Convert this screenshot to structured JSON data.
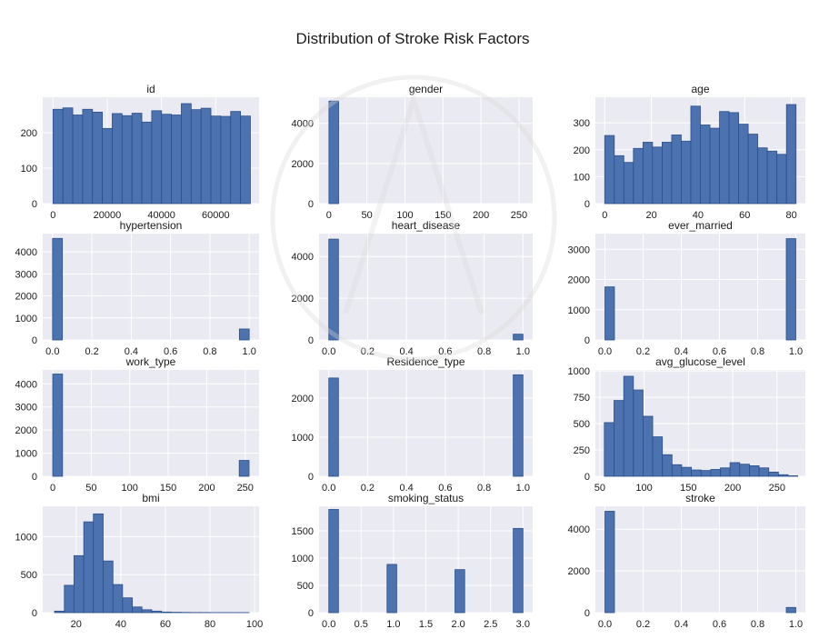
{
  "figure_title": "Distribution of Stroke Risk Factors",
  "colors": {
    "bar": "#4c72b0",
    "bar_edge": "#2b4f8a",
    "panel_bg": "#eaeaf2",
    "grid": "#ffffff"
  },
  "chart_data": [
    {
      "type": "bar",
      "title": "id",
      "xlim": [
        -3800,
        76000
      ],
      "ylim": [
        0,
        300
      ],
      "xticks": [
        0,
        20000,
        40000,
        60000
      ],
      "yticks": [
        0,
        100,
        200
      ],
      "bins": [
        [
          0,
          3640
        ],
        [
          3640,
          7280
        ],
        [
          7280,
          10920
        ],
        [
          10920,
          14560
        ],
        [
          14560,
          18200
        ],
        [
          18200,
          21840
        ],
        [
          21840,
          25480
        ],
        [
          25480,
          29120
        ],
        [
          29120,
          32760
        ],
        [
          32760,
          36400
        ],
        [
          36400,
          40040
        ],
        [
          40040,
          43680
        ],
        [
          43680,
          47320
        ],
        [
          47320,
          50960
        ],
        [
          50960,
          54600
        ],
        [
          54600,
          58240
        ],
        [
          58240,
          61880
        ],
        [
          61880,
          65520
        ],
        [
          65520,
          69160
        ],
        [
          69160,
          72800
        ]
      ],
      "values": [
        266,
        270,
        250,
        266,
        258,
        212,
        254,
        248,
        255,
        230,
        262,
        252,
        250,
        282,
        265,
        269,
        247,
        246,
        260,
        247
      ]
    },
    {
      "type": "bar",
      "title": "gender",
      "xlim": [
        -13,
        268
      ],
      "ylim": [
        0,
        5300
      ],
      "xticks": [
        0,
        50,
        100,
        150,
        200,
        250
      ],
      "yticks": [
        0,
        2000,
        4000
      ],
      "bins": [
        [
          0,
          12.75
        ]
      ],
      "values": [
        5110
      ]
    },
    {
      "type": "bar",
      "title": "age",
      "xlim": [
        -4,
        86
      ],
      "ylim": [
        0,
        395
      ],
      "xticks": [
        0,
        20,
        40,
        60,
        80
      ],
      "yticks": [
        0,
        100,
        200,
        300
      ],
      "bins": [
        [
          0,
          4.1
        ],
        [
          4.1,
          8.2
        ],
        [
          8.2,
          12.3
        ],
        [
          12.3,
          16.4
        ],
        [
          16.4,
          20.5
        ],
        [
          20.5,
          24.6
        ],
        [
          24.6,
          28.7
        ],
        [
          28.7,
          32.8
        ],
        [
          32.8,
          36.9
        ],
        [
          36.9,
          41
        ],
        [
          41,
          45.1
        ],
        [
          45.1,
          49.2
        ],
        [
          49.2,
          53.3
        ],
        [
          53.3,
          57.4
        ],
        [
          57.4,
          61.5
        ],
        [
          61.5,
          65.6
        ],
        [
          65.6,
          69.7
        ],
        [
          69.7,
          73.8
        ],
        [
          73.8,
          77.9
        ],
        [
          77.9,
          82
        ]
      ],
      "values": [
        253,
        178,
        153,
        205,
        228,
        210,
        228,
        255,
        232,
        362,
        292,
        280,
        342,
        338,
        295,
        258,
        207,
        195,
        183,
        368
      ]
    },
    {
      "type": "bar",
      "title": "hypertension",
      "xlim": [
        -0.05,
        1.05
      ],
      "ylim": [
        0,
        4830
      ],
      "xticks": [
        0,
        0.2,
        0.4,
        0.6,
        0.8,
        1
      ],
      "xtick_labels": [
        "0.0",
        "0.2",
        "0.4",
        "0.6",
        "0.8",
        "1.0"
      ],
      "yticks": [
        0,
        1000,
        2000,
        3000,
        4000
      ],
      "bins": [
        [
          0,
          0.05
        ],
        [
          0.95,
          1
        ]
      ],
      "values": [
        4612,
        498
      ]
    },
    {
      "type": "bar",
      "title": "heart_disease",
      "xlim": [
        -0.05,
        1.05
      ],
      "ylim": [
        0,
        5100
      ],
      "xticks": [
        0,
        0.2,
        0.4,
        0.6,
        0.8,
        1
      ],
      "xtick_labels": [
        "0.0",
        "0.2",
        "0.4",
        "0.6",
        "0.8",
        "1.0"
      ],
      "yticks": [
        0,
        2000,
        4000
      ],
      "bins": [
        [
          0,
          0.05
        ],
        [
          0.95,
          1
        ]
      ],
      "values": [
        4834,
        276
      ]
    },
    {
      "type": "bar",
      "title": "ever_married",
      "xlim": [
        -0.05,
        1.05
      ],
      "ylim": [
        0,
        3520
      ],
      "xticks": [
        0,
        0.2,
        0.4,
        0.6,
        0.8,
        1
      ],
      "xtick_labels": [
        "0.0",
        "0.2",
        "0.4",
        "0.6",
        "0.8",
        "1.0"
      ],
      "yticks": [
        0,
        1000,
        2000,
        3000
      ],
      "bins": [
        [
          0,
          0.05
        ],
        [
          0.95,
          1
        ]
      ],
      "values": [
        1757,
        3353
      ]
    },
    {
      "type": "bar",
      "title": "work_type",
      "xlim": [
        -13,
        268
      ],
      "ylim": [
        0,
        4600
      ],
      "xticks": [
        0,
        50,
        100,
        150,
        200,
        250
      ],
      "yticks": [
        0,
        1000,
        2000,
        3000,
        4000
      ],
      "bins": [
        [
          0,
          12.75
        ],
        [
          242.25,
          255
        ]
      ],
      "values": [
        4423,
        687
      ]
    },
    {
      "type": "bar",
      "title": "Residence_type",
      "xlim": [
        -0.05,
        1.05
      ],
      "ylim": [
        0,
        2720
      ],
      "xticks": [
        0,
        0.2,
        0.4,
        0.6,
        0.8,
        1
      ],
      "xtick_labels": [
        "0.0",
        "0.2",
        "0.4",
        "0.6",
        "0.8",
        "1.0"
      ],
      "yticks": [
        0,
        1000,
        2000
      ],
      "bins": [
        [
          0,
          0.05
        ],
        [
          0.95,
          1
        ]
      ],
      "values": [
        2514,
        2596
      ]
    },
    {
      "type": "bar",
      "title": "avg_glucose_level",
      "xlim": [
        45,
        282
      ],
      "ylim": [
        0,
        1010
      ],
      "xticks": [
        50,
        100,
        150,
        200,
        250
      ],
      "yticks": [
        0,
        250,
        500,
        750,
        1000
      ],
      "bins": [
        [
          55.1,
          66.0
        ],
        [
          66.0,
          77.0
        ],
        [
          77.0,
          87.9
        ],
        [
          87.9,
          98.8
        ],
        [
          98.8,
          109.7
        ],
        [
          109.7,
          120.6
        ],
        [
          120.6,
          131.5
        ],
        [
          131.5,
          142.4
        ],
        [
          142.4,
          153.4
        ],
        [
          153.4,
          164.3
        ],
        [
          164.3,
          175.2
        ],
        [
          175.2,
          186.1
        ],
        [
          186.1,
          197.0
        ],
        [
          197.0,
          207.9
        ],
        [
          207.9,
          218.9
        ],
        [
          218.9,
          229.8
        ],
        [
          229.8,
          240.7
        ],
        [
          240.7,
          251.6
        ],
        [
          251.6,
          262.5
        ],
        [
          262.5,
          273.4
        ]
      ],
      "values": [
        510,
        720,
        950,
        820,
        570,
        375,
        205,
        110,
        85,
        60,
        55,
        65,
        80,
        130,
        115,
        100,
        80,
        40,
        15,
        5
      ]
    },
    {
      "type": "bar",
      "title": "bmi",
      "xlim": [
        5,
        102
      ],
      "ylim": [
        0,
        1400
      ],
      "xticks": [
        20,
        40,
        60,
        80,
        100
      ],
      "yticks": [
        0,
        500,
        1000
      ],
      "bins": [
        [
          10.3,
          14.7
        ],
        [
          14.7,
          19.0
        ],
        [
          19.0,
          23.4
        ],
        [
          23.4,
          27.7
        ],
        [
          27.7,
          32.1
        ],
        [
          32.1,
          36.5
        ],
        [
          36.5,
          40.8
        ],
        [
          40.8,
          45.2
        ],
        [
          45.2,
          49.5
        ],
        [
          49.5,
          53.9
        ],
        [
          53.9,
          58.3
        ],
        [
          58.3,
          62.6
        ],
        [
          62.6,
          67.0
        ],
        [
          67.0,
          71.3
        ],
        [
          71.3,
          75.7
        ],
        [
          75.7,
          80.0
        ],
        [
          80.0,
          84.4
        ],
        [
          84.4,
          88.8
        ],
        [
          88.8,
          93.1
        ],
        [
          93.1,
          97.5
        ]
      ],
      "values": [
        20,
        360,
        750,
        1195,
        1300,
        680,
        370,
        195,
        75,
        38,
        20,
        8,
        5,
        3,
        2,
        2,
        1,
        1,
        1,
        1
      ]
    },
    {
      "type": "bar",
      "title": "smoking_status",
      "xlim": [
        -0.15,
        3.15
      ],
      "ylim": [
        0,
        1950
      ],
      "xticks": [
        0,
        0.5,
        1,
        1.5,
        2,
        2.5,
        3
      ],
      "xtick_labels": [
        "0.0",
        "0.5",
        "1.0",
        "1.5",
        "2.0",
        "2.5",
        "3.0"
      ],
      "yticks": [
        0,
        500,
        1000,
        1500
      ],
      "bins": [
        [
          0,
          0.15
        ],
        [
          0.9,
          1.05
        ],
        [
          1.95,
          2.1
        ],
        [
          2.85,
          3
        ]
      ],
      "values": [
        1892,
        885,
        789,
        1544
      ]
    },
    {
      "type": "bar",
      "title": "stroke",
      "xlim": [
        -0.05,
        1.05
      ],
      "ylim": [
        0,
        5100
      ],
      "xticks": [
        0,
        0.2,
        0.4,
        0.6,
        0.8,
        1
      ],
      "xtick_labels": [
        "0.0",
        "0.2",
        "0.4",
        "0.6",
        "0.8",
        "1.0"
      ],
      "yticks": [
        0,
        2000,
        4000
      ],
      "bins": [
        [
          0,
          0.05
        ],
        [
          0.95,
          1
        ]
      ],
      "values": [
        4861,
        249
      ]
    }
  ]
}
